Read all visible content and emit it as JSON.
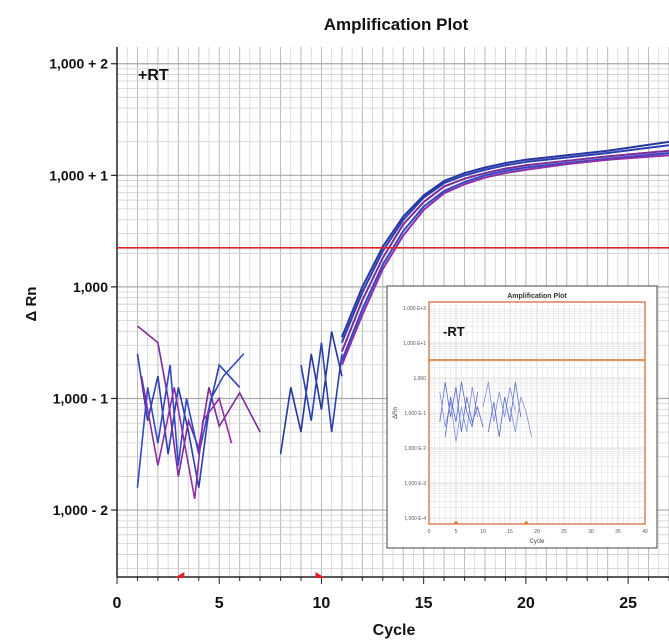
{
  "chart_data": {
    "type": "line",
    "title": "Amplification Plot",
    "xlabel": "Cycle",
    "ylabel": "Δ Rn",
    "annotation": "+RT",
    "scale": "log",
    "xlim": [
      0,
      27
    ],
    "ylim_decades": [
      -2.6,
      2.15
    ],
    "x_ticks": [
      0,
      5,
      10,
      15,
      20,
      25
    ],
    "y_ticks": [
      {
        "label": "1,000 + 2",
        "exponent": 2
      },
      {
        "label": "1,000 + 1",
        "exponent": 1
      },
      {
        "label": "1,000",
        "exponent": 0
      },
      {
        "label": "1,000 - 1",
        "exponent": -1
      },
      {
        "label": "1,000 - 2",
        "exponent": -2
      }
    ],
    "grid": true,
    "threshold_exponent": 0.35,
    "threshold_color": "#e0202a",
    "baseline_markers_cycle": [
      3,
      10
    ],
    "baseline_marker_color": "#e0202a",
    "series_colors": [
      "#2b3fb0",
      "#7a2a9c",
      "#3447c2",
      "#8e2fa8",
      "#2636a0"
    ],
    "series_description": "multiple replicate amplification traces crossing threshold near cycle 12.5-13",
    "series": [
      {
        "x": [
          11,
          12,
          13,
          14,
          15,
          16,
          17,
          18,
          19,
          20,
          22,
          24,
          27
        ],
        "y_exponent": [
          -0.5,
          -0.05,
          0.32,
          0.6,
          0.8,
          0.93,
          1.0,
          1.05,
          1.09,
          1.12,
          1.16,
          1.2,
          1.27
        ]
      },
      {
        "x": [
          11,
          12,
          13,
          14,
          15,
          16,
          17,
          18,
          19,
          20,
          22,
          24,
          27
        ],
        "y_exponent": [
          -0.58,
          -0.12,
          0.26,
          0.56,
          0.76,
          0.9,
          0.97,
          1.02,
          1.06,
          1.09,
          1.13,
          1.17,
          1.22
        ]
      },
      {
        "x": [
          11,
          12,
          13,
          14,
          15,
          16,
          17,
          18,
          19,
          20,
          22,
          24,
          27
        ],
        "y_exponent": [
          -0.66,
          -0.2,
          0.2,
          0.5,
          0.72,
          0.86,
          0.94,
          1.0,
          1.04,
          1.07,
          1.11,
          1.15,
          1.2
        ]
      },
      {
        "x": [
          11,
          12,
          13,
          14,
          15,
          16,
          17,
          18,
          19,
          20,
          22,
          24,
          27
        ],
        "y_exponent": [
          -0.7,
          -0.25,
          0.16,
          0.46,
          0.69,
          0.84,
          0.92,
          0.98,
          1.02,
          1.05,
          1.1,
          1.14,
          1.18
        ]
      },
      {
        "x": [
          11,
          12,
          13,
          14,
          15,
          16,
          17,
          18,
          19,
          20,
          22,
          24,
          27
        ],
        "y_exponent": [
          -0.45,
          0.0,
          0.36,
          0.63,
          0.82,
          0.95,
          1.02,
          1.07,
          1.11,
          1.14,
          1.18,
          1.22,
          1.3
        ]
      }
    ],
    "noise_series": [
      {
        "x": [
          1,
          1.5,
          2,
          2.5,
          3,
          3.5,
          4,
          4.5,
          5,
          6
        ],
        "y_exponent": [
          -0.6,
          -1.2,
          -0.8,
          -1.5,
          -0.9,
          -1.3,
          -1.8,
          -1.1,
          -0.7,
          -0.9
        ]
      },
      {
        "x": [
          1,
          2,
          2.5,
          3,
          3.5,
          4,
          4.5,
          5,
          6,
          7
        ],
        "y_exponent": [
          -0.35,
          -0.5,
          -1.0,
          -1.7,
          -1.2,
          -1.45,
          -0.9,
          -1.25,
          -0.95,
          -1.3
        ]
      },
      {
        "x": [
          1,
          1.5,
          2,
          2.6,
          3,
          3.4,
          4,
          4.6,
          5.2,
          6.2
        ],
        "y_exponent": [
          -1.8,
          -0.9,
          -1.4,
          -0.7,
          -1.6,
          -1.0,
          -1.5,
          -1.0,
          -0.8,
          -0.6
        ]
      },
      {
        "x": [
          1.2,
          2,
          2.8,
          3.2,
          3.8,
          4.2,
          5,
          5.6
        ],
        "y_exponent": [
          -0.8,
          -1.6,
          -0.9,
          -1.3,
          -1.9,
          -1.2,
          -1.0,
          -1.4
        ]
      },
      {
        "x": [
          8,
          8.5,
          9,
          9.5,
          10,
          10.5,
          11
        ],
        "y_exponent": [
          -1.5,
          -0.9,
          -1.3,
          -0.6,
          -1.1,
          -0.4,
          -0.8
        ]
      },
      {
        "x": [
          9,
          9.5,
          10,
          10.5,
          11
        ],
        "y_exponent": [
          -0.7,
          -1.2,
          -0.5,
          -1.3,
          -0.6
        ]
      }
    ],
    "inset": {
      "title": "Amplification Plot",
      "annotation": "-RT",
      "xlabel": "Cycle",
      "ylabel": "ΔRn",
      "xlim": [
        0,
        40
      ],
      "x_ticks": [
        "0",
        "5",
        "10",
        "15",
        "20",
        "25",
        "30",
        "35",
        "40"
      ],
      "y_ticks": [
        "1,000 E+2",
        "1,000 E+1",
        "1,000",
        "1,000 E-1",
        "1,000 E-2",
        "1,000 E-3",
        "1,000 E-4"
      ],
      "threshold_color": "#e07020",
      "frame_color": "#d06030"
    }
  }
}
